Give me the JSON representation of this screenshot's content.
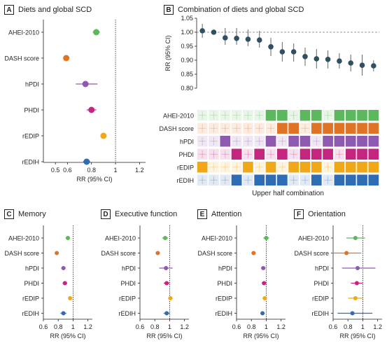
{
  "colors": {
    "AHEI-2010": "#5cb85c",
    "DASH score": "#e07426",
    "hPDI": "#8e5ab0",
    "PHDI": "#c4257e",
    "rEDIP": "#f0a818",
    "rEDIH": "#2e6db4"
  },
  "panels": {
    "A": {
      "letter": "A",
      "title": "Diets and global SCD"
    },
    "B": {
      "letter": "B",
      "title": "Combination of diets and global SCD"
    },
    "C": {
      "letter": "C",
      "title": "Memory"
    },
    "D": {
      "letter": "D",
      "title": "Executive function"
    },
    "E": {
      "letter": "E",
      "title": "Attention"
    },
    "F": {
      "letter": "F",
      "title": "Orientation"
    }
  },
  "chart_data": [
    {
      "panel": "A",
      "type": "scatter",
      "title": "Diets and global SCD",
      "xlabel": "RR (95% CI)",
      "xlim": [
        0.4,
        1.25
      ],
      "xticks": [
        "0.5",
        "0.6",
        "0.8",
        "1",
        "1.2"
      ],
      "xtick_values": [
        0.5,
        0.6,
        0.8,
        1,
        1.2
      ],
      "reference_line": 1,
      "series": [
        {
          "name": "AHEI-2010",
          "value": 0.84,
          "ci": [
            0.81,
            0.87
          ]
        },
        {
          "name": "DASH score",
          "value": 0.59,
          "ci": [
            0.57,
            0.61
          ]
        },
        {
          "name": "hPDI",
          "value": 0.75,
          "ci": [
            0.67,
            0.85
          ]
        },
        {
          "name": "PHDI",
          "value": 0.8,
          "ci": [
            0.76,
            0.84
          ]
        },
        {
          "name": "rEDIP",
          "value": 0.9,
          "ci": [
            0.88,
            0.92
          ]
        },
        {
          "name": "rEDIH",
          "value": 0.76,
          "ci": [
            0.73,
            0.79
          ]
        }
      ]
    },
    {
      "panel": "B",
      "type": "scatter",
      "title": "Combination of diets and global SCD",
      "ylabel": "RR (95% CI)",
      "xlabel": "Upper half combination",
      "ylim": [
        0.8,
        1.05
      ],
      "yticks": [
        "0.80",
        "0.85",
        "0.90",
        "0.95",
        "1.00",
        "1.05"
      ],
      "ytick_values": [
        0.8,
        0.85,
        0.9,
        0.95,
        1.0,
        1.05
      ],
      "reference_line": 1,
      "points": [
        {
          "value": 1.005,
          "ci": [
            0.98,
            1.03
          ]
        },
        {
          "value": 1.0,
          "ci": [
            0.998,
            1.002
          ]
        },
        {
          "value": 0.98,
          "ci": [
            0.955,
            1.015
          ]
        },
        {
          "value": 0.978,
          "ci": [
            0.955,
            1.015
          ]
        },
        {
          "value": 0.975,
          "ci": [
            0.95,
            1.01
          ]
        },
        {
          "value": 0.972,
          "ci": [
            0.945,
            1.005
          ]
        },
        {
          "value": 0.948,
          "ci": [
            0.915,
            0.98
          ]
        },
        {
          "value": 0.93,
          "ci": [
            0.895,
            0.965
          ]
        },
        {
          "value": 0.93,
          "ci": [
            0.895,
            0.96
          ]
        },
        {
          "value": 0.913,
          "ci": [
            0.88,
            0.945
          ]
        },
        {
          "value": 0.905,
          "ci": [
            0.87,
            0.94
          ]
        },
        {
          "value": 0.903,
          "ci": [
            0.87,
            0.935
          ]
        },
        {
          "value": 0.897,
          "ci": [
            0.87,
            0.925
          ]
        },
        {
          "value": 0.89,
          "ci": [
            0.86,
            0.92
          ]
        },
        {
          "value": 0.882,
          "ci": [
            0.845,
            0.92
          ]
        },
        {
          "value": 0.88,
          "ci": [
            0.86,
            0.9
          ]
        }
      ],
      "rows": [
        "AHEI-2010",
        "DASH score",
        "hPDI",
        "PHDI",
        "rEDIP",
        "rEDIH"
      ],
      "matrix": [
        [
          0,
          0,
          0,
          0,
          0,
          0,
          1,
          1,
          0,
          1,
          1,
          0,
          1,
          1,
          1,
          1
        ],
        [
          0,
          0,
          0,
          0,
          0,
          0,
          0,
          1,
          1,
          0,
          1,
          1,
          1,
          1,
          1,
          1
        ],
        [
          0,
          0,
          1,
          0,
          0,
          0,
          1,
          0,
          1,
          1,
          0,
          1,
          1,
          1,
          1,
          1
        ],
        [
          0,
          0,
          0,
          1,
          0,
          1,
          0,
          1,
          0,
          1,
          1,
          1,
          0,
          1,
          1,
          1
        ],
        [
          1,
          0,
          0,
          0,
          1,
          0,
          1,
          0,
          1,
          1,
          1,
          0,
          1,
          1,
          1,
          1
        ],
        [
          0,
          0,
          0,
          1,
          0,
          1,
          1,
          1,
          0,
          0,
          1,
          0,
          1,
          1,
          1,
          1
        ]
      ]
    },
    {
      "panel": "C",
      "type": "scatter",
      "title": "Memory",
      "xlabel": "RR (95% CI)",
      "xlim": [
        0.6,
        1.26
      ],
      "xticks": [
        "0.6",
        "0.8",
        "1",
        "1.2"
      ],
      "xtick_values": [
        0.6,
        0.8,
        1,
        1.2
      ],
      "reference_line": 1,
      "series": [
        {
          "name": "AHEI-2010",
          "value": 0.93,
          "ci": [
            0.9,
            0.96
          ]
        },
        {
          "name": "DASH score",
          "value": 0.78,
          "ci": [
            0.76,
            0.8
          ]
        },
        {
          "name": "hPDI",
          "value": 0.87,
          "ci": [
            0.84,
            0.9
          ]
        },
        {
          "name": "PHDI",
          "value": 0.89,
          "ci": [
            0.86,
            0.92
          ]
        },
        {
          "name": "rEDIP",
          "value": 0.96,
          "ci": [
            0.94,
            0.98
          ]
        },
        {
          "name": "rEDIH",
          "value": 0.87,
          "ci": [
            0.83,
            0.91
          ]
        }
      ]
    },
    {
      "panel": "D",
      "type": "scatter",
      "title": "Executive function",
      "xlabel": "RR (95% CI)",
      "xlim": [
        0.6,
        1.26
      ],
      "xticks": [
        "0.6",
        "0.8",
        "1",
        "1.2"
      ],
      "xtick_values": [
        0.6,
        0.8,
        1,
        1.2
      ],
      "reference_line": 1,
      "series": [
        {
          "name": "AHEI-2010",
          "value": 0.94,
          "ci": [
            0.9,
            0.98
          ]
        },
        {
          "name": "DASH score",
          "value": 0.84,
          "ci": [
            0.81,
            0.87
          ]
        },
        {
          "name": "hPDI",
          "value": 0.95,
          "ci": [
            0.86,
            1.04
          ]
        },
        {
          "name": "PHDI",
          "value": 0.96,
          "ci": [
            0.92,
            1.0
          ]
        },
        {
          "name": "rEDIP",
          "value": 1.01,
          "ci": [
            0.98,
            1.04
          ]
        },
        {
          "name": "rEDIH",
          "value": 0.96,
          "ci": [
            0.92,
            1.0
          ]
        }
      ]
    },
    {
      "panel": "E",
      "type": "scatter",
      "title": "Attention",
      "xlabel": "RR (95% CI)",
      "xlim": [
        0.6,
        1.26
      ],
      "xticks": [
        "0.6",
        "0.8",
        "1",
        "1.2"
      ],
      "xtick_values": [
        0.6,
        0.8,
        1,
        1.2
      ],
      "reference_line": 1,
      "series": [
        {
          "name": "AHEI-2010",
          "value": 1.0,
          "ci": [
            0.96,
            1.04
          ]
        },
        {
          "name": "DASH score",
          "value": 0.83,
          "ci": [
            0.8,
            0.86
          ]
        },
        {
          "name": "hPDI",
          "value": 0.96,
          "ci": [
            0.93,
            0.99
          ]
        },
        {
          "name": "PHDI",
          "value": 0.97,
          "ci": [
            0.94,
            1.0
          ]
        },
        {
          "name": "rEDIP",
          "value": 0.98,
          "ci": [
            0.95,
            1.01
          ]
        },
        {
          "name": "rEDIH",
          "value": 0.95,
          "ci": [
            0.92,
            0.98
          ]
        }
      ]
    },
    {
      "panel": "F",
      "type": "scatter",
      "title": "Orientation",
      "xlabel": "RR (95% CI)",
      "xlim": [
        0.6,
        1.26
      ],
      "xticks": [
        "0.6",
        "0.8",
        "1",
        "1.2"
      ],
      "xtick_values": [
        0.6,
        0.8,
        1,
        1.2
      ],
      "reference_line": 1,
      "series": [
        {
          "name": "AHEI-2010",
          "value": 0.9,
          "ci": [
            0.78,
            1.03
          ]
        },
        {
          "name": "DASH score",
          "value": 0.78,
          "ci": [
            0.59,
            0.98
          ]
        },
        {
          "name": "hPDI",
          "value": 0.93,
          "ci": [
            0.72,
            1.17
          ]
        },
        {
          "name": "PHDI",
          "value": 0.92,
          "ci": [
            0.84,
            1.0
          ]
        },
        {
          "name": "rEDIP",
          "value": 0.9,
          "ci": [
            0.8,
            1.0
          ]
        },
        {
          "name": "rEDIH",
          "value": 0.86,
          "ci": [
            0.66,
            1.13
          ]
        }
      ]
    }
  ]
}
